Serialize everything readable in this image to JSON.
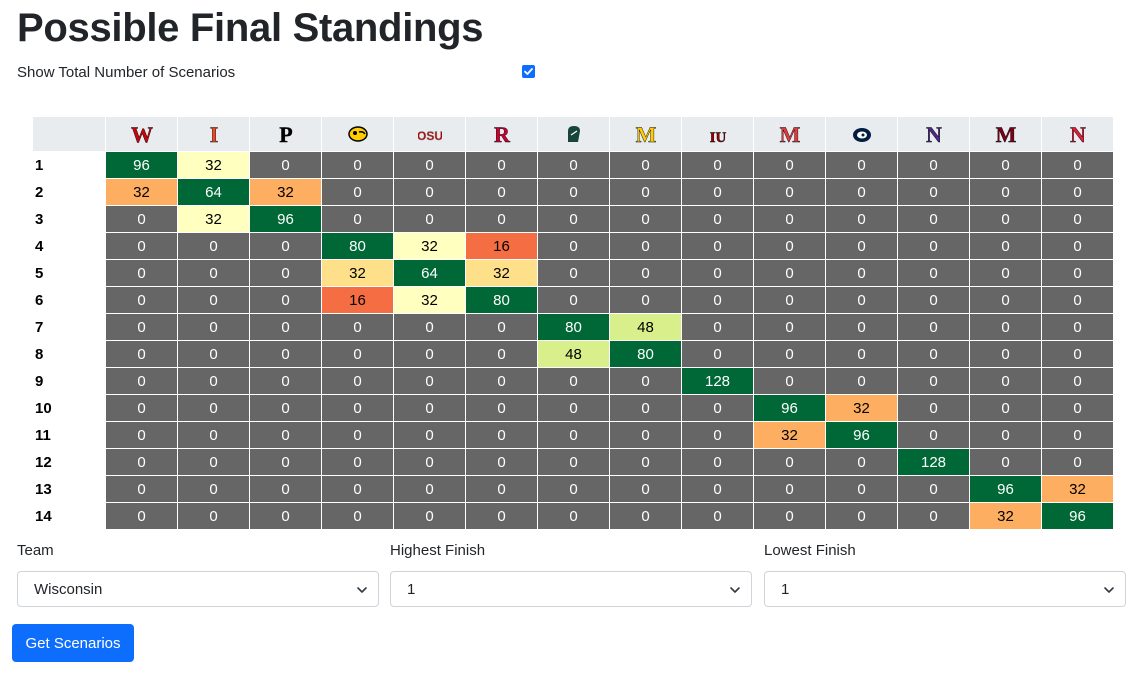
{
  "page": {
    "title": "Possible Final Standings"
  },
  "toggle": {
    "label": "Show Total Number of Scenarios",
    "checked": true
  },
  "teams": [
    {
      "icon": "wisconsin-logo-icon",
      "letter": "W",
      "color": "#c5050c"
    },
    {
      "icon": "illinois-logo-icon",
      "letter": "I",
      "color": "#e84a27"
    },
    {
      "icon": "purdue-logo-icon",
      "letter": "P",
      "color": "#000000"
    },
    {
      "icon": "iowa-logo-icon",
      "letter": "",
      "color": "#000000"
    },
    {
      "icon": "ohio-state-logo-icon",
      "letter": "OSU",
      "color": "#bb0000"
    },
    {
      "icon": "rutgers-logo-icon",
      "letter": "R",
      "color": "#cc0033"
    },
    {
      "icon": "michigan-state-logo-icon",
      "letter": "",
      "color": "#18453b"
    },
    {
      "icon": "michigan-logo-icon",
      "letter": "M",
      "color": "#ffcb05"
    },
    {
      "icon": "indiana-logo-icon",
      "letter": "IU",
      "color": "#990000"
    },
    {
      "icon": "maryland-logo-icon",
      "letter": "M",
      "color": "#e03a3e"
    },
    {
      "icon": "penn-state-logo-icon",
      "letter": "",
      "color": "#041e42"
    },
    {
      "icon": "northwestern-logo-icon",
      "letter": "N",
      "color": "#4e2a84"
    },
    {
      "icon": "minnesota-logo-icon",
      "letter": "M",
      "color": "#7a0019"
    },
    {
      "icon": "nebraska-logo-icon",
      "letter": "N",
      "color": "#e41c38"
    }
  ],
  "colors": {
    "dark": "#006837",
    "lgreen": "#d9ef8b",
    "lyellow": "#ffffbf",
    "yellow": "#fee08b",
    "orange": "#fdae61",
    "red": "#f46d43",
    "zero": "#666666",
    "button": "#0d6efd"
  },
  "standings": [
    {
      "rank": "1",
      "values": [
        96,
        32,
        0,
        0,
        0,
        0,
        0,
        0,
        0,
        0,
        0,
        0,
        0,
        0
      ],
      "styles": [
        "dark",
        "lyellow",
        "",
        "",
        "",
        "",
        "",
        "",
        "",
        "",
        "",
        "",
        "",
        ""
      ]
    },
    {
      "rank": "2",
      "values": [
        32,
        64,
        32,
        0,
        0,
        0,
        0,
        0,
        0,
        0,
        0,
        0,
        0,
        0
      ],
      "styles": [
        "orange",
        "dark",
        "orange",
        "",
        "",
        "",
        "",
        "",
        "",
        "",
        "",
        "",
        "",
        ""
      ]
    },
    {
      "rank": "3",
      "values": [
        0,
        32,
        96,
        0,
        0,
        0,
        0,
        0,
        0,
        0,
        0,
        0,
        0,
        0
      ],
      "styles": [
        "",
        "lyellow",
        "dark",
        "",
        "",
        "",
        "",
        "",
        "",
        "",
        "",
        "",
        "",
        ""
      ]
    },
    {
      "rank": "4",
      "values": [
        0,
        0,
        0,
        80,
        32,
        16,
        0,
        0,
        0,
        0,
        0,
        0,
        0,
        0
      ],
      "styles": [
        "",
        "",
        "",
        "dark",
        "lyellow",
        "red",
        "",
        "",
        "",
        "",
        "",
        "",
        "",
        ""
      ]
    },
    {
      "rank": "5",
      "values": [
        0,
        0,
        0,
        32,
        64,
        32,
        0,
        0,
        0,
        0,
        0,
        0,
        0,
        0
      ],
      "styles": [
        "",
        "",
        "",
        "yellow",
        "dark",
        "yellow",
        "",
        "",
        "",
        "",
        "",
        "",
        "",
        ""
      ]
    },
    {
      "rank": "6",
      "values": [
        0,
        0,
        0,
        16,
        32,
        80,
        0,
        0,
        0,
        0,
        0,
        0,
        0,
        0
      ],
      "styles": [
        "",
        "",
        "",
        "red",
        "lyellow",
        "dark",
        "",
        "",
        "",
        "",
        "",
        "",
        "",
        ""
      ]
    },
    {
      "rank": "7",
      "values": [
        0,
        0,
        0,
        0,
        0,
        0,
        80,
        48,
        0,
        0,
        0,
        0,
        0,
        0
      ],
      "styles": [
        "",
        "",
        "",
        "",
        "",
        "",
        "dark",
        "lgreen",
        "",
        "",
        "",
        "",
        "",
        ""
      ]
    },
    {
      "rank": "8",
      "values": [
        0,
        0,
        0,
        0,
        0,
        0,
        48,
        80,
        0,
        0,
        0,
        0,
        0,
        0
      ],
      "styles": [
        "",
        "",
        "",
        "",
        "",
        "",
        "lgreen",
        "dark",
        "",
        "",
        "",
        "",
        "",
        ""
      ]
    },
    {
      "rank": "9",
      "values": [
        0,
        0,
        0,
        0,
        0,
        0,
        0,
        0,
        128,
        0,
        0,
        0,
        0,
        0
      ],
      "styles": [
        "",
        "",
        "",
        "",
        "",
        "",
        "",
        "",
        "dark",
        "",
        "",
        "",
        "",
        ""
      ]
    },
    {
      "rank": "10",
      "values": [
        0,
        0,
        0,
        0,
        0,
        0,
        0,
        0,
        0,
        96,
        32,
        0,
        0,
        0
      ],
      "styles": [
        "",
        "",
        "",
        "",
        "",
        "",
        "",
        "",
        "",
        "dark",
        "orange",
        "",
        "",
        ""
      ]
    },
    {
      "rank": "11",
      "values": [
        0,
        0,
        0,
        0,
        0,
        0,
        0,
        0,
        0,
        32,
        96,
        0,
        0,
        0
      ],
      "styles": [
        "",
        "",
        "",
        "",
        "",
        "",
        "",
        "",
        "",
        "orange",
        "dark",
        "",
        "",
        ""
      ]
    },
    {
      "rank": "12",
      "values": [
        0,
        0,
        0,
        0,
        0,
        0,
        0,
        0,
        0,
        0,
        0,
        128,
        0,
        0
      ],
      "styles": [
        "",
        "",
        "",
        "",
        "",
        "",
        "",
        "",
        "",
        "",
        "",
        "dark",
        "",
        ""
      ]
    },
    {
      "rank": "13",
      "values": [
        0,
        0,
        0,
        0,
        0,
        0,
        0,
        0,
        0,
        0,
        0,
        0,
        96,
        32
      ],
      "styles": [
        "",
        "",
        "",
        "",
        "",
        "",
        "",
        "",
        "",
        "",
        "",
        "",
        "dark",
        "orange"
      ]
    },
    {
      "rank": "14",
      "values": [
        0,
        0,
        0,
        0,
        0,
        0,
        0,
        0,
        0,
        0,
        0,
        0,
        32,
        96
      ],
      "styles": [
        "",
        "",
        "",
        "",
        "",
        "",
        "",
        "",
        "",
        "",
        "",
        "",
        "orange",
        "dark"
      ]
    }
  ],
  "form": {
    "team_label": "Team",
    "team_value": "Wisconsin",
    "highest_label": "Highest Finish",
    "highest_value": "1",
    "lowest_label": "Lowest Finish",
    "lowest_value": "1",
    "submit_label": "Get Scenarios"
  }
}
